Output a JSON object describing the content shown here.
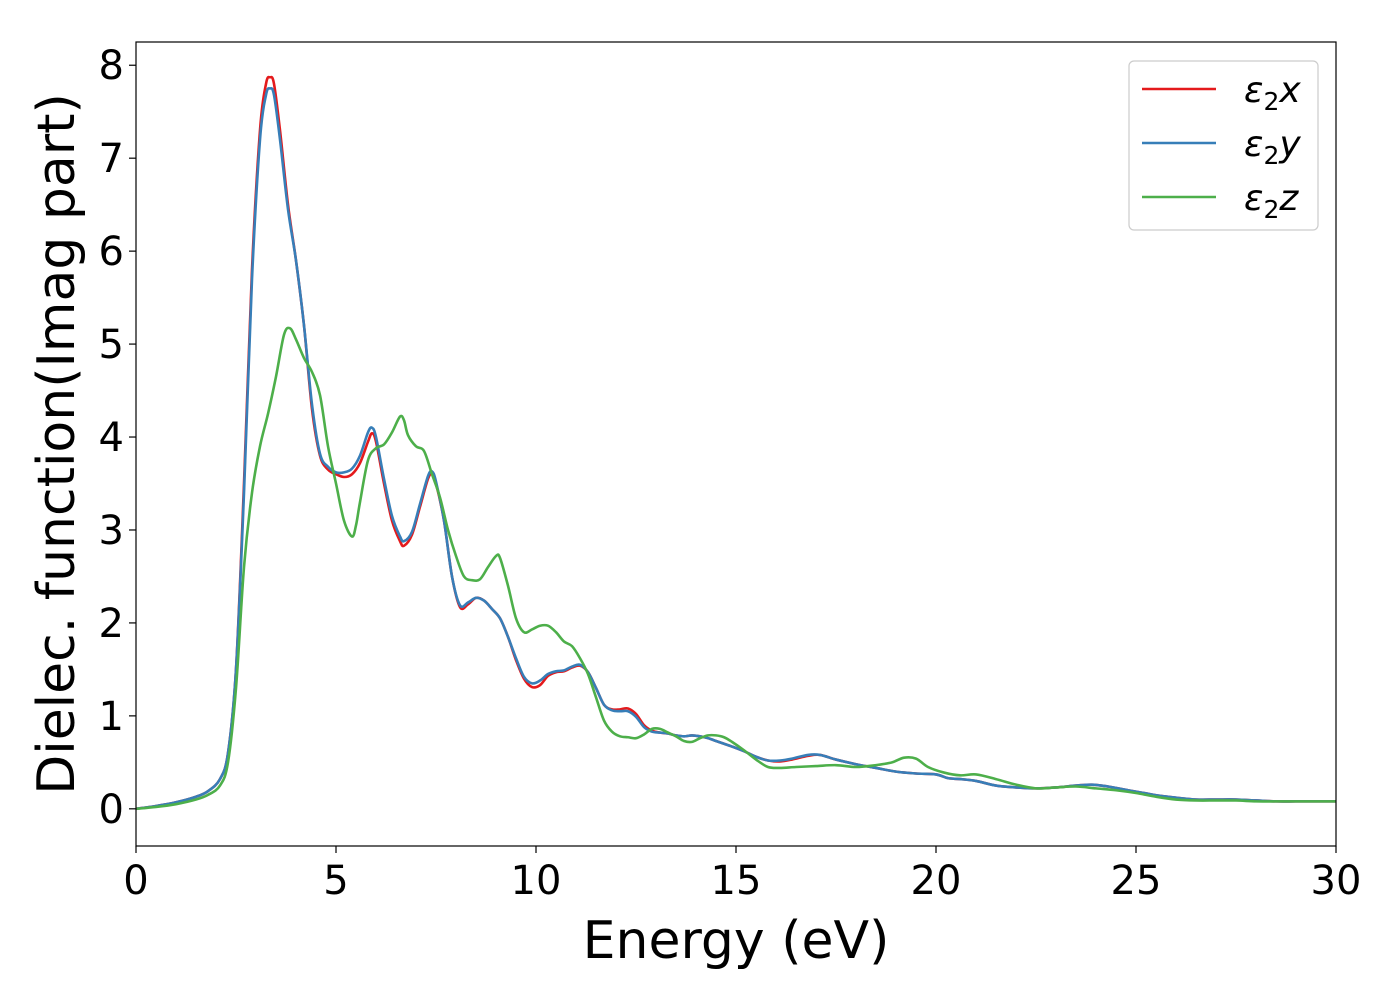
{
  "chart_data": {
    "type": "line",
    "xlabel": "Energy (eV)",
    "ylabel": "Dielec. function(Imag part)",
    "xlim": [
      0,
      30
    ],
    "ylim": [
      -0.4,
      8.25
    ],
    "xticks": [
      0,
      5,
      10,
      15,
      20,
      25,
      30
    ],
    "yticks": [
      0,
      1,
      2,
      3,
      4,
      5,
      6,
      7,
      8
    ],
    "grid": false,
    "legend_position": "top-right",
    "series": [
      {
        "name": "ε2x",
        "legend": {
          "main": "ε",
          "sub": "2",
          "suffix": "x"
        },
        "color": "#e41a1c",
        "x": [
          0,
          0.5,
          1.0,
          1.5,
          1.8,
          2.1,
          2.3,
          2.5,
          2.7,
          2.9,
          3.1,
          3.25,
          3.35,
          3.45,
          3.6,
          3.8,
          4.0,
          4.2,
          4.4,
          4.6,
          4.8,
          5.0,
          5.2,
          5.4,
          5.6,
          5.8,
          5.9,
          6.0,
          6.2,
          6.4,
          6.6,
          6.7,
          6.9,
          7.1,
          7.3,
          7.4,
          7.5,
          7.7,
          7.9,
          8.1,
          8.3,
          8.5,
          8.7,
          8.9,
          9.1,
          9.3,
          9.5,
          9.7,
          9.9,
          10.1,
          10.3,
          10.5,
          10.7,
          10.9,
          11.1,
          11.3,
          11.5,
          11.7,
          11.9,
          12.1,
          12.3,
          12.5,
          12.7,
          12.9,
          13.1,
          13.3,
          13.5,
          13.7,
          13.9,
          14.1,
          14.3,
          14.5,
          14.7,
          14.9,
          15.2,
          15.5,
          15.8,
          16.1,
          16.4,
          16.8,
          17.1,
          17.5,
          18.0,
          18.5,
          19.0,
          19.5,
          20.0,
          20.3,
          20.6,
          21.0,
          21.5,
          22.0,
          22.5,
          23.0,
          23.5,
          23.9,
          24.3,
          24.8,
          25.2,
          25.6,
          26.0,
          26.5,
          27.0,
          27.5,
          28.0,
          28.5,
          29.0,
          29.5,
          30.0
        ],
        "y": [
          0.0,
          0.03,
          0.07,
          0.13,
          0.19,
          0.32,
          0.6,
          1.5,
          3.5,
          5.8,
          7.3,
          7.8,
          7.87,
          7.8,
          7.3,
          6.5,
          5.9,
          5.2,
          4.3,
          3.8,
          3.65,
          3.6,
          3.57,
          3.6,
          3.72,
          3.95,
          4.04,
          3.95,
          3.5,
          3.1,
          2.88,
          2.83,
          2.95,
          3.25,
          3.55,
          3.6,
          3.5,
          3.1,
          2.5,
          2.17,
          2.2,
          2.27,
          2.24,
          2.15,
          2.05,
          1.85,
          1.6,
          1.4,
          1.31,
          1.33,
          1.43,
          1.47,
          1.48,
          1.52,
          1.54,
          1.47,
          1.3,
          1.12,
          1.07,
          1.07,
          1.08,
          1.02,
          0.9,
          0.84,
          0.82,
          0.81,
          0.79,
          0.78,
          0.79,
          0.78,
          0.76,
          0.73,
          0.7,
          0.67,
          0.62,
          0.56,
          0.52,
          0.51,
          0.53,
          0.57,
          0.58,
          0.53,
          0.48,
          0.44,
          0.4,
          0.38,
          0.37,
          0.33,
          0.32,
          0.3,
          0.25,
          0.23,
          0.22,
          0.23,
          0.25,
          0.26,
          0.24,
          0.2,
          0.17,
          0.14,
          0.12,
          0.1,
          0.1,
          0.1,
          0.09,
          0.08,
          0.08,
          0.08,
          0.08
        ]
      },
      {
        "name": "ε2y",
        "legend": {
          "main": "ε",
          "sub": "2",
          "suffix": "y"
        },
        "color": "#377eb8",
        "x": [
          0,
          0.5,
          1.0,
          1.5,
          1.8,
          2.1,
          2.3,
          2.5,
          2.7,
          2.9,
          3.1,
          3.25,
          3.35,
          3.45,
          3.6,
          3.8,
          4.0,
          4.2,
          4.4,
          4.6,
          4.8,
          5.0,
          5.2,
          5.4,
          5.6,
          5.8,
          5.9,
          6.0,
          6.2,
          6.4,
          6.6,
          6.7,
          6.9,
          7.1,
          7.3,
          7.4,
          7.5,
          7.7,
          7.9,
          8.1,
          8.3,
          8.5,
          8.7,
          8.9,
          9.1,
          9.3,
          9.5,
          9.7,
          9.9,
          10.1,
          10.3,
          10.5,
          10.7,
          10.9,
          11.1,
          11.3,
          11.5,
          11.7,
          11.9,
          12.1,
          12.3,
          12.5,
          12.7,
          12.9,
          13.1,
          13.3,
          13.5,
          13.7,
          13.9,
          14.1,
          14.3,
          14.5,
          14.7,
          14.9,
          15.2,
          15.5,
          15.8,
          16.1,
          16.4,
          16.8,
          17.1,
          17.5,
          18.0,
          18.5,
          19.0,
          19.5,
          20.0,
          20.3,
          20.6,
          21.0,
          21.5,
          22.0,
          22.5,
          23.0,
          23.5,
          23.9,
          24.3,
          24.8,
          25.2,
          25.6,
          26.0,
          26.5,
          27.0,
          27.5,
          28.0,
          28.5,
          29.0,
          29.5,
          30.0
        ],
        "y": [
          0.0,
          0.03,
          0.07,
          0.13,
          0.19,
          0.32,
          0.6,
          1.5,
          3.4,
          5.7,
          7.2,
          7.68,
          7.75,
          7.68,
          7.2,
          6.45,
          5.9,
          5.2,
          4.35,
          3.82,
          3.68,
          3.62,
          3.62,
          3.66,
          3.8,
          4.05,
          4.1,
          4.0,
          3.55,
          3.15,
          2.93,
          2.88,
          2.98,
          3.28,
          3.58,
          3.63,
          3.52,
          3.1,
          2.5,
          2.19,
          2.22,
          2.27,
          2.24,
          2.15,
          2.05,
          1.85,
          1.62,
          1.42,
          1.35,
          1.38,
          1.45,
          1.48,
          1.49,
          1.53,
          1.55,
          1.47,
          1.3,
          1.12,
          1.06,
          1.05,
          1.05,
          0.99,
          0.88,
          0.83,
          0.82,
          0.81,
          0.79,
          0.78,
          0.79,
          0.78,
          0.76,
          0.73,
          0.7,
          0.67,
          0.62,
          0.56,
          0.52,
          0.52,
          0.54,
          0.58,
          0.58,
          0.53,
          0.48,
          0.44,
          0.4,
          0.38,
          0.37,
          0.33,
          0.32,
          0.3,
          0.25,
          0.23,
          0.22,
          0.23,
          0.25,
          0.26,
          0.24,
          0.2,
          0.17,
          0.14,
          0.12,
          0.1,
          0.1,
          0.1,
          0.09,
          0.08,
          0.08,
          0.08,
          0.08
        ]
      },
      {
        "name": "ε2z",
        "legend": {
          "main": "ε",
          "sub": "2",
          "suffix": "z"
        },
        "color": "#4daf4a",
        "x": [
          0,
          0.5,
          1.0,
          1.5,
          1.8,
          2.1,
          2.3,
          2.5,
          2.7,
          2.9,
          3.1,
          3.3,
          3.5,
          3.7,
          3.85,
          4.0,
          4.2,
          4.4,
          4.6,
          4.8,
          5.0,
          5.2,
          5.4,
          5.5,
          5.6,
          5.8,
          6.0,
          6.2,
          6.4,
          6.6,
          6.7,
          6.8,
          7.0,
          7.2,
          7.4,
          7.6,
          7.8,
          8.0,
          8.2,
          8.4,
          8.6,
          8.8,
          9.0,
          9.1,
          9.3,
          9.5,
          9.7,
          9.9,
          10.1,
          10.3,
          10.5,
          10.7,
          10.9,
          11.1,
          11.3,
          11.5,
          11.7,
          11.9,
          12.1,
          12.3,
          12.5,
          12.7,
          12.9,
          13.1,
          13.3,
          13.5,
          13.7,
          13.9,
          14.1,
          14.3,
          14.5,
          14.7,
          14.9,
          15.2,
          15.5,
          15.8,
          16.1,
          16.5,
          17.0,
          17.5,
          18.0,
          18.5,
          18.9,
          19.2,
          19.5,
          19.8,
          20.2,
          20.6,
          21.0,
          21.5,
          22.0,
          22.5,
          23.0,
          23.5,
          24.0,
          24.5,
          25.0,
          25.5,
          26.0,
          26.5,
          27.0,
          27.5,
          28.0,
          28.5,
          29.0,
          29.5,
          30.0
        ],
        "y": [
          0.0,
          0.02,
          0.05,
          0.1,
          0.15,
          0.25,
          0.5,
          1.3,
          2.6,
          3.4,
          3.9,
          4.25,
          4.65,
          5.1,
          5.17,
          5.05,
          4.85,
          4.7,
          4.45,
          3.9,
          3.5,
          3.1,
          2.93,
          3.05,
          3.3,
          3.75,
          3.88,
          3.92,
          4.05,
          4.22,
          4.18,
          4.02,
          3.9,
          3.85,
          3.6,
          3.35,
          3.0,
          2.72,
          2.5,
          2.46,
          2.47,
          2.6,
          2.72,
          2.7,
          2.4,
          2.05,
          1.9,
          1.93,
          1.97,
          1.97,
          1.9,
          1.8,
          1.75,
          1.62,
          1.45,
          1.2,
          0.95,
          0.83,
          0.78,
          0.77,
          0.76,
          0.8,
          0.86,
          0.86,
          0.82,
          0.78,
          0.73,
          0.72,
          0.76,
          0.79,
          0.79,
          0.77,
          0.72,
          0.63,
          0.53,
          0.45,
          0.44,
          0.45,
          0.46,
          0.47,
          0.45,
          0.47,
          0.5,
          0.55,
          0.54,
          0.45,
          0.39,
          0.36,
          0.37,
          0.32,
          0.26,
          0.22,
          0.23,
          0.24,
          0.22,
          0.2,
          0.17,
          0.13,
          0.1,
          0.09,
          0.09,
          0.09,
          0.08,
          0.08,
          0.08,
          0.08,
          0.08
        ]
      }
    ]
  }
}
